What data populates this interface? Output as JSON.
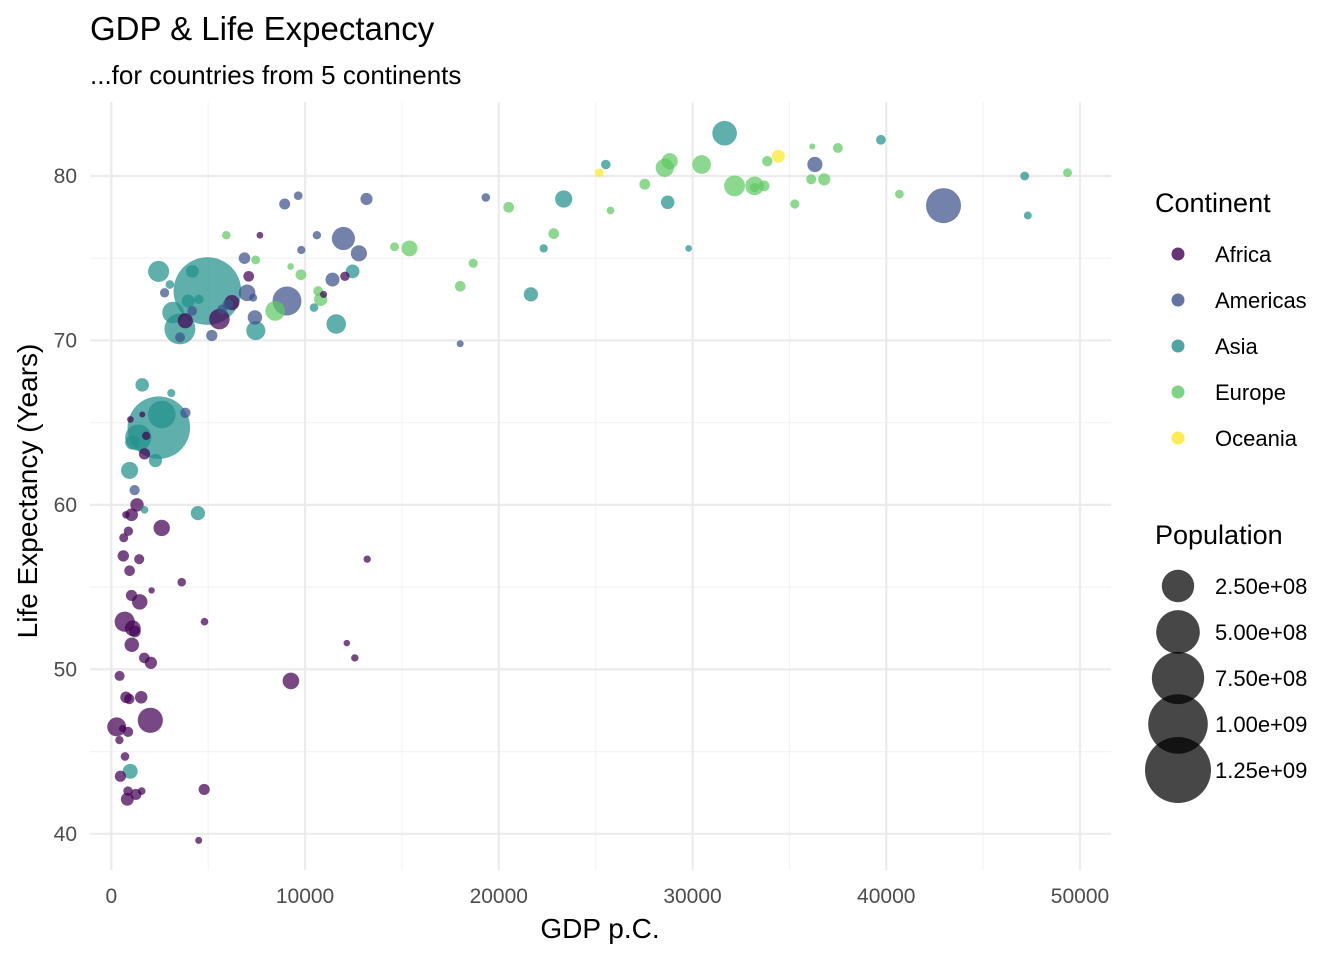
{
  "chart_data": {
    "type": "scatter",
    "title": "GDP & Life Expectancy",
    "subtitle": "...for countries from 5 continents",
    "xlabel": "GDP p.C.",
    "ylabel": "Life Expectancy (Years)",
    "xlim": [
      -1100,
      51600
    ],
    "ylim": [
      37.8,
      84.5
    ],
    "x_ticks": [
      0,
      10000,
      20000,
      30000,
      40000,
      50000
    ],
    "y_ticks": [
      40,
      50,
      60,
      70,
      80
    ],
    "x_tick_labels": [
      "0",
      "10000",
      "20000",
      "30000",
      "40000",
      "50000"
    ],
    "y_tick_labels": [
      "40",
      "50",
      "60",
      "70",
      "80"
    ],
    "grid": true,
    "legend_position": "right",
    "colors": {
      "Africa": "#440154",
      "Americas": "#3b528b",
      "Asia": "#21908c",
      "Europe": "#5ec962",
      "Oceania": "#fde725",
      "size_key": "#000000"
    },
    "color_legend": {
      "title": "Continent",
      "entries": [
        "Africa",
        "Americas",
        "Asia",
        "Europe",
        "Oceania"
      ]
    },
    "size_legend": {
      "title": "Population",
      "entries": [
        {
          "label": "2.50e+08",
          "value": 250000000
        },
        {
          "label": "5.00e+08",
          "value": 500000000
        },
        {
          "label": "7.50e+08",
          "value": 750000000
        },
        {
          "label": "1.00e+09",
          "value": 1000000000
        },
        {
          "label": "1.25e+09",
          "value": 1250000000
        }
      ]
    },
    "series": [
      {
        "name": "Africa",
        "points": [
          [
            6223,
            72.3,
            33000000
          ],
          [
            4797,
            42.7,
            12000000
          ],
          [
            1441,
            56.7,
            8000000
          ],
          [
            12570,
            50.7,
            1600000
          ],
          [
            1217,
            52.3,
            14000000
          ],
          [
            430,
            49.6,
            8000000
          ],
          [
            2042,
            50.4,
            17000000
          ],
          [
            706,
            44.7,
            4000000
          ],
          [
            1704,
            50.7,
            10000000
          ],
          [
            986,
            65.2,
            700000
          ],
          [
            278,
            46.5,
            64000000
          ],
          [
            3633,
            55.3,
            3800000
          ],
          [
            1545,
            48.3,
            18000000
          ],
          [
            2082,
            54.8,
            500000
          ],
          [
            5581,
            71.3,
            80000000
          ],
          [
            12154,
            51.6,
            550000
          ],
          [
            641,
            58.0,
            4900000
          ],
          [
            690,
            52.9,
            76000000
          ],
          [
            13206,
            56.7,
            1450000
          ],
          [
            753,
            59.4,
            1700000
          ],
          [
            1327,
            60.0,
            22900000
          ],
          [
            943,
            56.0,
            9900000
          ],
          [
            580,
            46.4,
            1450000
          ],
          [
            1463,
            54.1,
            35600000
          ],
          [
            1569,
            42.6,
            2000000
          ],
          [
            415,
            45.7,
            3200000
          ],
          [
            12057,
            73.9,
            6000000
          ],
          [
            1045,
            59.4,
            19200000
          ],
          [
            759,
            48.3,
            13300000
          ],
          [
            1042,
            54.5,
            12000000
          ],
          [
            1803,
            64.2,
            3300000
          ],
          [
            10957,
            72.8,
            1250000
          ],
          [
            3820,
            71.2,
            33700000
          ],
          [
            824,
            42.1,
            20000000
          ],
          [
            4811,
            52.9,
            2000000
          ],
          [
            620,
            56.9,
            12900000
          ],
          [
            2014,
            46.9,
            135000000
          ],
          [
            7670,
            76.4,
            800000
          ],
          [
            863,
            46.2,
            8860000
          ],
          [
            1598,
            65.5,
            200000
          ],
          [
            1712,
            63.1,
            12300000
          ],
          [
            862,
            42.6,
            6100000
          ],
          [
            926,
            48.2,
            9100000
          ],
          [
            9270,
            49.3,
            44000000
          ],
          [
            2602,
            58.6,
            42300000
          ],
          [
            4513,
            39.6,
            1130000
          ],
          [
            1107,
            52.5,
            38100000
          ],
          [
            883,
            58.4,
            5700000
          ],
          [
            7093,
            73.9,
            10300000
          ],
          [
            1056,
            51.5,
            29200000
          ],
          [
            1271,
            42.4,
            11700000
          ],
          [
            470,
            43.5,
            12300000
          ]
        ]
      },
      {
        "name": "Americas",
        "points": [
          [
            12779,
            75.3,
            40300000
          ],
          [
            3822,
            65.6,
            9100000
          ],
          [
            9066,
            72.4,
            190000000
          ],
          [
            36319,
            80.7,
            33400000
          ],
          [
            13172,
            78.6,
            16300000
          ],
          [
            7007,
            72.9,
            44200000
          ],
          [
            9645,
            78.8,
            4100000
          ],
          [
            8948,
            78.3,
            11400000
          ],
          [
            6025,
            72.2,
            9300000
          ],
          [
            6873,
            75.0,
            13800000
          ],
          [
            5728,
            71.9,
            6900000
          ],
          [
            5186,
            70.3,
            12600000
          ],
          [
            1202,
            60.9,
            8500000
          ],
          [
            3548,
            70.2,
            7500000
          ],
          [
            7321,
            72.6,
            2800000
          ],
          [
            11978,
            76.2,
            108700000
          ],
          [
            2749,
            72.9,
            5700000
          ],
          [
            9809,
            75.5,
            3200000
          ],
          [
            4173,
            71.8,
            6700000
          ],
          [
            7409,
            71.4,
            28700000
          ],
          [
            19329,
            78.7,
            3900000
          ],
          [
            18009,
            69.8,
            1100000
          ],
          [
            42952,
            78.2,
            301000000
          ],
          [
            10611,
            76.4,
            3400000
          ],
          [
            11416,
            73.7,
            26100000
          ]
        ]
      },
      {
        "name": "Asia",
        "points": [
          [
            975,
            43.8,
            31900000
          ],
          [
            29796,
            75.6,
            700000
          ],
          [
            1391,
            64.1,
            150000000
          ],
          [
            1714,
            59.7,
            2100000
          ],
          [
            4959,
            73.0,
            1318000000
          ],
          [
            39725,
            82.2,
            6980000
          ],
          [
            2452,
            64.7,
            1110000000
          ],
          [
            3541,
            70.7,
            223500000
          ],
          [
            11606,
            71.0,
            69500000
          ],
          [
            4471,
            59.5,
            27500000
          ],
          [
            25523,
            80.7,
            6400000
          ],
          [
            31656,
            82.6,
            127500000
          ],
          [
            4519,
            72.5,
            6100000
          ],
          [
            1593,
            67.3,
            23300000
          ],
          [
            23348,
            78.6,
            49000000
          ],
          [
            47307,
            77.6,
            2500000
          ],
          [
            10461,
            72.0,
            3900000
          ],
          [
            12452,
            74.2,
            24800000
          ],
          [
            3096,
            66.8,
            2900000
          ],
          [
            944,
            62.1,
            47800000
          ],
          [
            1091,
            63.8,
            28900000
          ],
          [
            22316,
            75.6,
            3200000
          ],
          [
            2606,
            65.5,
            169300000
          ],
          [
            3190,
            71.7,
            91100000
          ],
          [
            21655,
            72.8,
            27600000
          ],
          [
            47143,
            80.0,
            4550000
          ],
          [
            3970,
            72.4,
            20400000
          ],
          [
            4185,
            74.2,
            19300000
          ],
          [
            28718,
            78.4,
            23200000
          ],
          [
            7458,
            70.6,
            65100000
          ],
          [
            2442,
            74.2,
            85300000
          ],
          [
            3025,
            73.4,
            4000000
          ],
          [
            2281,
            62.7,
            22200000
          ]
        ]
      },
      {
        "name": "Europe",
        "points": [
          [
            5937,
            76.4,
            3600000
          ],
          [
            36126,
            79.8,
            8200000
          ],
          [
            33693,
            79.4,
            10400000
          ],
          [
            7446,
            74.9,
            4600000
          ],
          [
            10681,
            73.0,
            7300000
          ],
          [
            14619,
            75.7,
            4500000
          ],
          [
            22833,
            76.5,
            10200000
          ],
          [
            35278,
            78.3,
            5500000
          ],
          [
            33207,
            79.3,
            5200000
          ],
          [
            30470,
            80.7,
            61100000
          ],
          [
            32170,
            79.4,
            82400000
          ],
          [
            27538,
            79.5,
            10700000
          ],
          [
            18009,
            73.3,
            9900000
          ],
          [
            36181,
            81.8,
            300000
          ],
          [
            40676,
            78.9,
            4100000
          ],
          [
            28570,
            80.5,
            58100000
          ],
          [
            9254,
            74.5,
            700000
          ],
          [
            36798,
            79.8,
            16600000
          ],
          [
            49357,
            80.2,
            4600000
          ],
          [
            15390,
            75.6,
            38500000
          ],
          [
            20510,
            78.1,
            10600000
          ],
          [
            10808,
            72.5,
            22300000
          ],
          [
            9787,
            74.0,
            10200000
          ],
          [
            18678,
            74.7,
            5400000
          ],
          [
            25768,
            77.9,
            2000000
          ],
          [
            28821,
            80.9,
            40400000
          ],
          [
            33860,
            80.9,
            9000000
          ],
          [
            37506,
            81.7,
            7500000
          ],
          [
            8458,
            71.8,
            71200000
          ],
          [
            33203,
            79.4,
            60800000
          ]
        ]
      },
      {
        "name": "Oceania",
        "points": [
          [
            34435,
            81.2,
            20400000
          ],
          [
            25185,
            80.2,
            4100000
          ]
        ]
      }
    ]
  }
}
